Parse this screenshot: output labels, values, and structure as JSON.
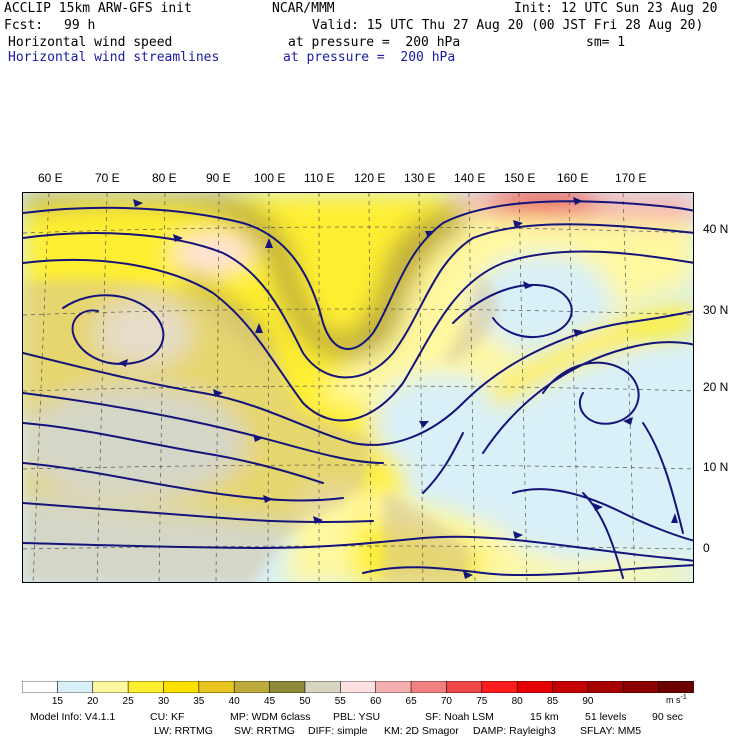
{
  "header": {
    "model": "ACCLIP 15km ARW-GFS init",
    "center": "NCAR/MMM",
    "init": "Init: 12 UTC Sun 23 Aug 20",
    "fcst_label": "Fcst:",
    "fcst_value": "99 h",
    "valid": "Valid: 15 UTC Thu 27 Aug 20 (00 JST Fri 28 Aug 20)",
    "field1": "Horizontal wind speed",
    "field1_level": "at pressure =  200 hPa",
    "smoothing": "sm= 1",
    "field2": "Horizontal wind streamlines",
    "field2_level": "at pressure =  200 hPa"
  },
  "map": {
    "lon_labels": [
      "60 E",
      "70 E",
      "80 E",
      "90 E",
      "100 E",
      "110 E",
      "120 E",
      "130 E",
      "140 E",
      "150 E",
      "160 E",
      "170 E"
    ],
    "lat_labels": [
      "40 N",
      "30 N",
      "20 N",
      "10 N",
      "0"
    ],
    "streamline_color": "#14147a",
    "land_color": "#d2c2a0"
  },
  "colorbar": {
    "labels": [
      "15",
      "20",
      "25",
      "30",
      "35",
      "40",
      "45",
      "50",
      "55",
      "60",
      "65",
      "70",
      "75",
      "80",
      "85",
      "90"
    ],
    "units": "m s",
    "units_exp": "-1",
    "colors": [
      "#ffffff",
      "#d8f0f8",
      "#fff8a0",
      "#ffef30",
      "#fbe000",
      "#e8c41e",
      "#bcaa3a",
      "#8f8a3a",
      "#d8d6c0",
      "#ffe0e0",
      "#f6b0b0",
      "#f28080",
      "#ee4848",
      "#ff1c1c",
      "#e40000",
      "#c40000",
      "#a80000",
      "#8c0000",
      "#6a0000"
    ]
  },
  "footer": {
    "line1": [
      "Model Info: V4.1.1",
      "CU: KF",
      "MP: WDM 6class",
      "PBL: YSU",
      "SF: Noah LSM",
      "15 km",
      "51 levels",
      "90 sec"
    ],
    "line2": [
      "LW: RRTMG",
      "SW: RRTMG",
      "DIFF: simple",
      "KM: 2D Smagor",
      "DAMP: Rayleigh3",
      "SFLAY: MM5"
    ]
  }
}
